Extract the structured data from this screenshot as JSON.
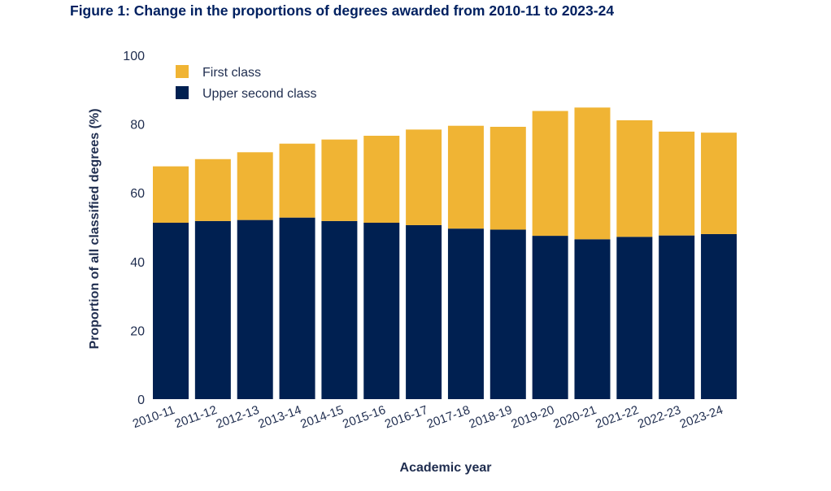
{
  "figure_title": "Figure 1: Change in the proportions of degrees awarded from 2010-11 to 2023-24",
  "colors": {
    "first_class": "#F0B434",
    "upper_second": "#002051",
    "text": "#1F2D4F",
    "title": "#002060"
  },
  "chart_data": {
    "type": "bar",
    "stacked": true,
    "title": "Figure 1: Change in the proportions of degrees awarded from 2010-11 to 2023-24",
    "xlabel": "Academic year",
    "ylabel": "Proportion of all classified degrees (%)",
    "ylim": [
      0,
      100
    ],
    "yticks": [
      0,
      20,
      40,
      60,
      80,
      100
    ],
    "grid": false,
    "legend_position": "top-left",
    "categories": [
      "2010-11",
      "2011-12",
      "2012-13",
      "2013-14",
      "2014-15",
      "2015-16",
      "2016-17",
      "2017-18",
      "2018-19",
      "2019-20",
      "2020-21",
      "2021-22",
      "2022-23",
      "2023-24"
    ],
    "series": [
      {
        "name": "Upper second class",
        "color": "#002051",
        "values": [
          51.3,
          51.8,
          52.1,
          52.8,
          51.8,
          51.3,
          50.6,
          49.6,
          49.3,
          47.5,
          46.5,
          47.2,
          47.6,
          48.0
        ]
      },
      {
        "name": "First class",
        "color": "#F0B434",
        "values": [
          16.4,
          18.0,
          19.7,
          21.5,
          23.7,
          25.3,
          27.8,
          29.9,
          29.9,
          36.3,
          38.3,
          33.9,
          30.2,
          29.5
        ]
      }
    ]
  }
}
